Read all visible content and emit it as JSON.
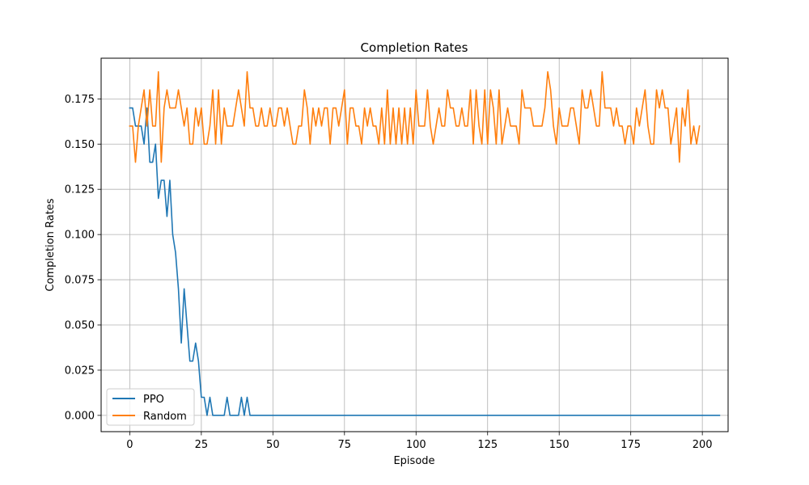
{
  "chart_data": {
    "type": "line",
    "title": "Completion Rates",
    "xlabel": "Episode",
    "ylabel": "Completion Rates",
    "xlim": [
      -10,
      209
    ],
    "ylim": [
      -0.009,
      0.1975
    ],
    "xticks": [
      0,
      25,
      50,
      75,
      100,
      125,
      150,
      175,
      200
    ],
    "xtick_labels": [
      "0",
      "25",
      "50",
      "75",
      "100",
      "125",
      "150",
      "175",
      "200"
    ],
    "yticks": [
      0.0,
      0.025,
      0.05,
      0.075,
      0.1,
      0.125,
      0.15,
      0.175
    ],
    "ytick_labels": [
      "0.000",
      "0.025",
      "0.050",
      "0.075",
      "0.100",
      "0.125",
      "0.150",
      "0.175"
    ],
    "grid": true,
    "legend_position": "lower-left",
    "x_start": 0,
    "series": [
      {
        "name": "PPO",
        "color": "#1f77b4",
        "values": [
          0.17,
          0.17,
          0.16,
          0.16,
          0.16,
          0.15,
          0.17,
          0.14,
          0.14,
          0.15,
          0.12,
          0.13,
          0.13,
          0.11,
          0.13,
          0.1,
          0.09,
          0.07,
          0.04,
          0.07,
          0.05,
          0.03,
          0.03,
          0.04,
          0.03,
          0.01,
          0.01,
          0.0,
          0.01,
          0.0,
          0.0,
          0.0,
          0.0,
          0.0,
          0.01,
          0.0,
          0.0,
          0.0,
          0.0,
          0.01,
          0.0,
          0.01,
          0.0,
          0.0,
          0.0,
          0.0,
          0.0,
          0.0,
          0.0,
          0.0,
          0.0,
          0.0,
          0.0,
          0.0,
          0.0,
          0.0,
          0.0,
          0.0,
          0.0,
          0.0,
          0.0,
          0.0,
          0.0,
          0.0,
          0.0,
          0.0,
          0.0,
          0.0,
          0.0,
          0.0,
          0.0,
          0.0,
          0.0,
          0.0,
          0.0,
          0.0,
          0.0,
          0.0,
          0.0,
          0.0,
          0.0,
          0.0,
          0.0,
          0.0,
          0.0,
          0.0,
          0.0,
          0.0,
          0.0,
          0.0,
          0.0,
          0.0,
          0.0,
          0.0,
          0.0,
          0.0,
          0.0,
          0.0,
          0.0,
          0.0,
          0.0,
          0.0,
          0.0,
          0.0,
          0.0,
          0.0,
          0.0,
          0.0,
          0.0,
          0.0,
          0.0,
          0.0,
          0.0,
          0.0,
          0.0,
          0.0,
          0.0,
          0.0,
          0.0,
          0.0,
          0.0,
          0.0,
          0.0,
          0.0,
          0.0,
          0.0,
          0.0,
          0.0,
          0.0,
          0.0,
          0.0,
          0.0,
          0.0,
          0.0,
          0.0,
          0.0,
          0.0,
          0.0,
          0.0,
          0.0,
          0.0,
          0.0,
          0.0,
          0.0,
          0.0,
          0.0,
          0.0,
          0.0,
          0.0,
          0.0,
          0.0,
          0.0,
          0.0,
          0.0,
          0.0,
          0.0,
          0.0,
          0.0,
          0.0,
          0.0,
          0.0,
          0.0,
          0.0,
          0.0,
          0.0,
          0.0,
          0.0,
          0.0,
          0.0,
          0.0,
          0.0,
          0.0,
          0.0,
          0.0,
          0.0,
          0.0,
          0.0,
          0.0,
          0.0,
          0.0,
          0.0,
          0.0,
          0.0,
          0.0,
          0.0,
          0.0,
          0.0,
          0.0,
          0.0,
          0.0,
          0.0,
          0.0,
          0.0,
          0.0,
          0.0,
          0.0,
          0.0,
          0.0,
          0.0,
          0.0,
          0.0,
          0.0,
          0.0,
          0.0,
          0.0,
          0.0,
          0.0
        ]
      },
      {
        "name": "Random",
        "color": "#ff7f0e",
        "values": [
          0.16,
          0.16,
          0.14,
          0.16,
          0.17,
          0.18,
          0.16,
          0.18,
          0.16,
          0.16,
          0.19,
          0.14,
          0.17,
          0.18,
          0.17,
          0.17,
          0.17,
          0.18,
          0.17,
          0.16,
          0.17,
          0.15,
          0.15,
          0.17,
          0.16,
          0.17,
          0.15,
          0.15,
          0.16,
          0.18,
          0.15,
          0.18,
          0.15,
          0.17,
          0.16,
          0.16,
          0.16,
          0.17,
          0.18,
          0.17,
          0.16,
          0.19,
          0.17,
          0.17,
          0.16,
          0.16,
          0.17,
          0.16,
          0.16,
          0.17,
          0.16,
          0.16,
          0.17,
          0.17,
          0.16,
          0.17,
          0.16,
          0.15,
          0.15,
          0.16,
          0.16,
          0.18,
          0.17,
          0.15,
          0.17,
          0.16,
          0.17,
          0.16,
          0.17,
          0.17,
          0.15,
          0.17,
          0.17,
          0.16,
          0.17,
          0.18,
          0.15,
          0.17,
          0.17,
          0.16,
          0.16,
          0.15,
          0.17,
          0.16,
          0.17,
          0.16,
          0.16,
          0.15,
          0.17,
          0.15,
          0.18,
          0.15,
          0.17,
          0.15,
          0.17,
          0.15,
          0.17,
          0.15,
          0.17,
          0.15,
          0.18,
          0.16,
          0.16,
          0.16,
          0.18,
          0.16,
          0.15,
          0.16,
          0.17,
          0.16,
          0.16,
          0.18,
          0.17,
          0.17,
          0.16,
          0.16,
          0.17,
          0.16,
          0.16,
          0.18,
          0.15,
          0.18,
          0.16,
          0.15,
          0.18,
          0.15,
          0.18,
          0.17,
          0.15,
          0.18,
          0.15,
          0.16,
          0.17,
          0.16,
          0.16,
          0.16,
          0.15,
          0.18,
          0.17,
          0.17,
          0.17,
          0.16,
          0.16,
          0.16,
          0.16,
          0.17,
          0.19,
          0.18,
          0.16,
          0.15,
          0.17,
          0.16,
          0.16,
          0.16,
          0.17,
          0.17,
          0.16,
          0.15,
          0.18,
          0.17,
          0.17,
          0.18,
          0.17,
          0.16,
          0.16,
          0.19,
          0.17,
          0.17,
          0.17,
          0.16,
          0.17,
          0.16,
          0.16,
          0.15,
          0.16,
          0.16,
          0.15,
          0.17,
          0.16,
          0.17,
          0.18,
          0.16,
          0.15,
          0.15,
          0.18,
          0.17,
          0.18,
          0.17,
          0.17,
          0.15,
          0.16,
          0.17,
          0.14,
          0.17,
          0.16,
          0.18,
          0.15,
          0.16,
          0.15,
          0.16
        ]
      }
    ]
  },
  "colors": {
    "grid": "#b0b0b0",
    "axes": "#000000",
    "background": "#ffffff",
    "legend_border": "#cccccc"
  }
}
